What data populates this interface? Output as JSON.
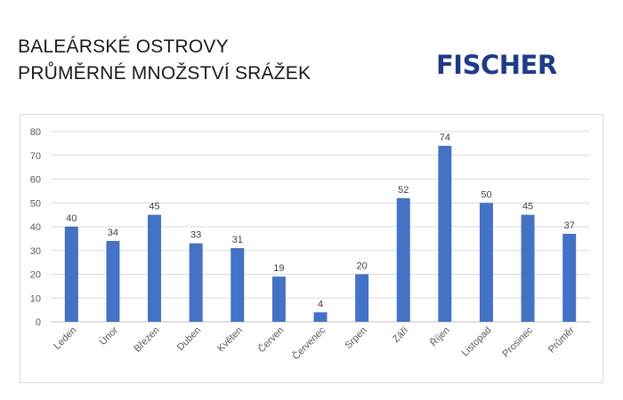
{
  "header": {
    "title_line1": "BALEÁRSKÉ OSTROVY",
    "title_line2": "PRŮMĚRNÉ MNOŽSTVÍ SRÁŽEK"
  },
  "logo": {
    "text": "FISCHER",
    "color": "#1f3c88"
  },
  "chart_data": {
    "type": "bar",
    "categories": [
      "Leden",
      "Únor",
      "Březen",
      "Duben",
      "Květen",
      "Červen",
      "Červenec",
      "Srpen",
      "Září",
      "Říjen",
      "Listopad",
      "Prosinec",
      "Průměr"
    ],
    "values": [
      40,
      34,
      45,
      33,
      31,
      19,
      4,
      20,
      52,
      74,
      50,
      45,
      37
    ],
    "ylim": [
      0,
      80
    ],
    "yticks": [
      0,
      10,
      20,
      30,
      40,
      50,
      60,
      70,
      80
    ],
    "grid": true,
    "bar_color": "#4472c4",
    "data_labels": true,
    "title": "",
    "xlabel": "",
    "ylabel": ""
  }
}
